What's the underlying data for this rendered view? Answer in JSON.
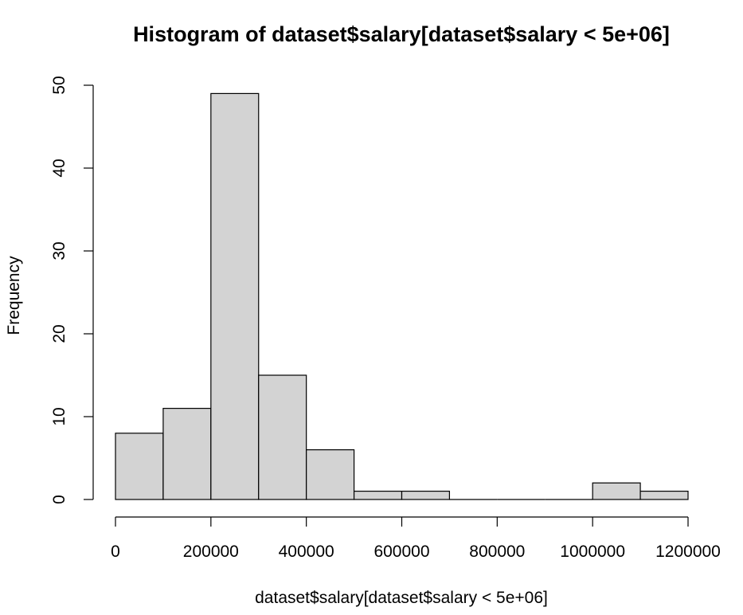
{
  "chart_data": {
    "type": "bar",
    "title": "Histogram of dataset$salary[dataset$salary < 5e+06]",
    "xlabel": "dataset$salary[dataset$salary < 5e+06]",
    "ylabel": "Frequency",
    "bins": [
      {
        "from": 0,
        "to": 100000,
        "count": 8
      },
      {
        "from": 100000,
        "to": 200000,
        "count": 11
      },
      {
        "from": 200000,
        "to": 300000,
        "count": 49
      },
      {
        "from": 300000,
        "to": 400000,
        "count": 15
      },
      {
        "from": 400000,
        "to": 500000,
        "count": 6
      },
      {
        "from": 500000,
        "to": 600000,
        "count": 1
      },
      {
        "from": 600000,
        "to": 700000,
        "count": 1
      },
      {
        "from": 700000,
        "to": 800000,
        "count": 0
      },
      {
        "from": 800000,
        "to": 900000,
        "count": 0
      },
      {
        "from": 900000,
        "to": 1000000,
        "count": 0
      },
      {
        "from": 1000000,
        "to": 1100000,
        "count": 2
      },
      {
        "from": 1100000,
        "to": 1200000,
        "count": 1
      }
    ],
    "xlim": [
      0,
      1200000
    ],
    "ylim": [
      0,
      50
    ],
    "x_ticks": [
      0,
      200000,
      400000,
      600000,
      800000,
      1000000,
      1200000
    ],
    "x_tick_labels": [
      "0",
      "200000",
      "400000",
      "600000",
      "800000",
      "1000000",
      "1200000"
    ],
    "y_ticks": [
      0,
      10,
      20,
      30,
      40,
      50
    ],
    "y_tick_labels": [
      "0",
      "10",
      "20",
      "30",
      "40",
      "50"
    ],
    "bar_fill": "#d3d3d3",
    "bar_stroke": "#000000",
    "grid": false
  }
}
